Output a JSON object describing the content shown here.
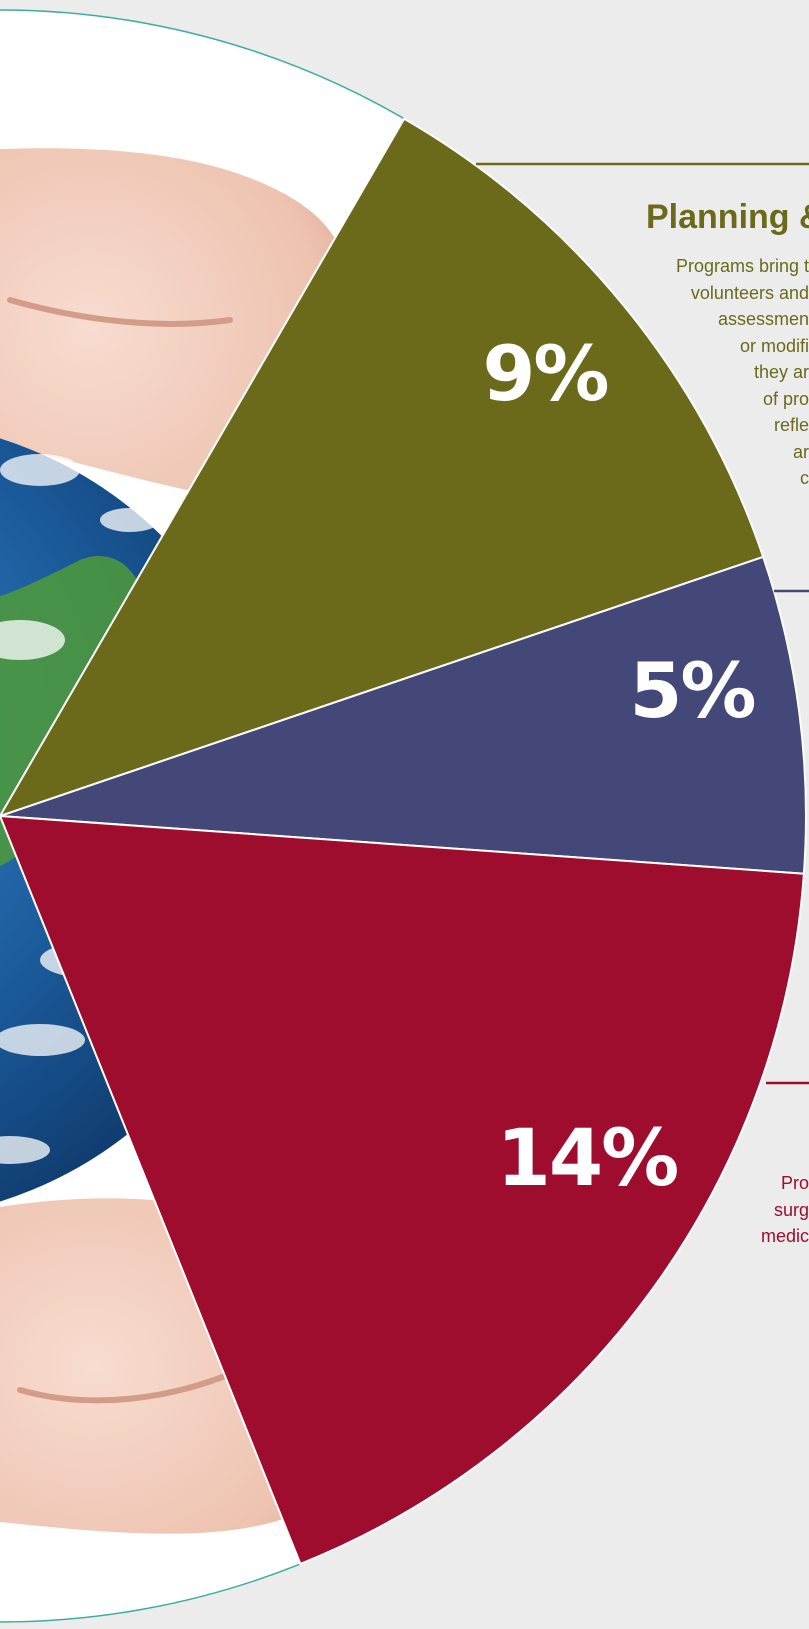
{
  "chart_data": {
    "type": "pie",
    "slices": [
      {
        "label": "9%",
        "value": 9,
        "color": "#6b6a1b"
      },
      {
        "label": "5%",
        "value": 5,
        "color": "#434878"
      },
      {
        "label": "14%",
        "value": 14,
        "color": "#9e0c2e"
      }
    ]
  },
  "colors": {
    "background": "#ececec",
    "plate": "#ffffff",
    "ring": "#3aaea0",
    "olive": "#6b6a1b",
    "navy": "#434878",
    "crimson": "#9e0c2e"
  },
  "image": "hands-holding-earth-globe",
  "sections": {
    "planning": {
      "title": "Planning &",
      "lines": [
        "Programs bring t",
        "volunteers and",
        "assessmen",
        "or modifi",
        "they ar",
        "of pro",
        "refle",
        "ar",
        "c"
      ]
    },
    "crimson_section": {
      "lines": [
        "Pro",
        "surg",
        "medic"
      ]
    }
  }
}
